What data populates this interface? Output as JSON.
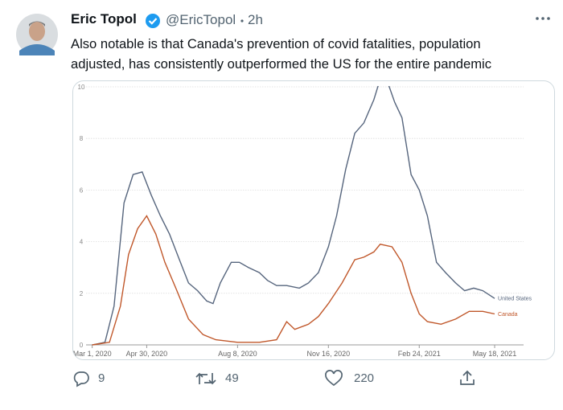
{
  "tweet": {
    "author": "Eric Topol",
    "handle": "@EricTopol",
    "time": "2h",
    "text_lines": [
      "Also notable is that Canada's prevention of covid fatalities, population",
      "adjusted, has consistently outperformed the US for the entire pandemic"
    ]
  },
  "actions": {
    "replies": 9,
    "retweets": 49,
    "likes": 220
  },
  "chart_data": {
    "type": "line",
    "xlim": [
      "2020-02-25",
      "2021-06-10"
    ],
    "xticks": [
      {
        "value": "2020-03-01",
        "label": "Mar 1, 2020"
      },
      {
        "value": "2020-04-30",
        "label": "Apr 30, 2020"
      },
      {
        "value": "2020-08-08",
        "label": "Aug 8, 2020"
      },
      {
        "value": "2020-11-16",
        "label": "Nov 16, 2020"
      },
      {
        "value": "2021-02-24",
        "label": "Feb 24, 2021"
      },
      {
        "value": "2021-05-18",
        "label": "May 18, 2021"
      }
    ],
    "ylim": [
      0,
      10
    ],
    "yticks": [
      0,
      2,
      4,
      6,
      8,
      10
    ],
    "grid": true,
    "series": [
      {
        "name": "United States",
        "color": "#56657d",
        "x": [
          "2020-03-01",
          "2020-03-15",
          "2020-03-25",
          "2020-04-05",
          "2020-04-15",
          "2020-04-25",
          "2020-05-05",
          "2020-05-15",
          "2020-05-25",
          "2020-06-05",
          "2020-06-15",
          "2020-06-25",
          "2020-07-05",
          "2020-07-12",
          "2020-07-20",
          "2020-08-01",
          "2020-08-10",
          "2020-08-20",
          "2020-09-01",
          "2020-09-10",
          "2020-09-20",
          "2020-10-01",
          "2020-10-15",
          "2020-10-25",
          "2020-11-05",
          "2020-11-16",
          "2020-11-25",
          "2020-12-05",
          "2020-12-15",
          "2020-12-25",
          "2021-01-05",
          "2021-01-12",
          "2021-01-20",
          "2021-01-28",
          "2021-02-05",
          "2021-02-15",
          "2021-02-24",
          "2021-03-05",
          "2021-03-15",
          "2021-03-25",
          "2021-04-05",
          "2021-04-15",
          "2021-04-25",
          "2021-05-05",
          "2021-05-18"
        ],
        "values": [
          0,
          0.1,
          1.5,
          5.5,
          6.6,
          6.7,
          5.8,
          5.0,
          4.3,
          3.3,
          2.4,
          2.1,
          1.7,
          1.6,
          2.4,
          3.2,
          3.2,
          3.0,
          2.8,
          2.5,
          2.3,
          2.3,
          2.2,
          2.4,
          2.8,
          3.8,
          5.0,
          6.8,
          8.2,
          8.6,
          9.5,
          10.3,
          10.2,
          9.4,
          8.8,
          6.6,
          6.0,
          5.0,
          3.2,
          2.8,
          2.4,
          2.1,
          2.2,
          2.1,
          1.8
        ]
      },
      {
        "name": "Canada",
        "color": "#c0572a",
        "x": [
          "2020-03-01",
          "2020-03-20",
          "2020-04-01",
          "2020-04-10",
          "2020-04-20",
          "2020-04-30",
          "2020-05-10",
          "2020-05-20",
          "2020-06-01",
          "2020-06-15",
          "2020-07-01",
          "2020-07-15",
          "2020-08-08",
          "2020-09-01",
          "2020-09-20",
          "2020-10-01",
          "2020-10-10",
          "2020-10-25",
          "2020-11-05",
          "2020-11-16",
          "2020-12-01",
          "2020-12-15",
          "2020-12-25",
          "2021-01-05",
          "2021-01-12",
          "2021-01-25",
          "2021-02-05",
          "2021-02-15",
          "2021-02-24",
          "2021-03-05",
          "2021-03-20",
          "2021-04-05",
          "2021-04-20",
          "2021-05-05",
          "2021-05-18"
        ],
        "values": [
          0,
          0.1,
          1.5,
          3.5,
          4.5,
          5.0,
          4.3,
          3.2,
          2.2,
          1.0,
          0.4,
          0.2,
          0.1,
          0.1,
          0.2,
          0.9,
          0.6,
          0.8,
          1.1,
          1.6,
          2.4,
          3.3,
          3.4,
          3.6,
          3.9,
          3.8,
          3.2,
          2.0,
          1.2,
          0.9,
          0.8,
          1.0,
          1.3,
          1.3,
          1.2
        ]
      }
    ]
  }
}
